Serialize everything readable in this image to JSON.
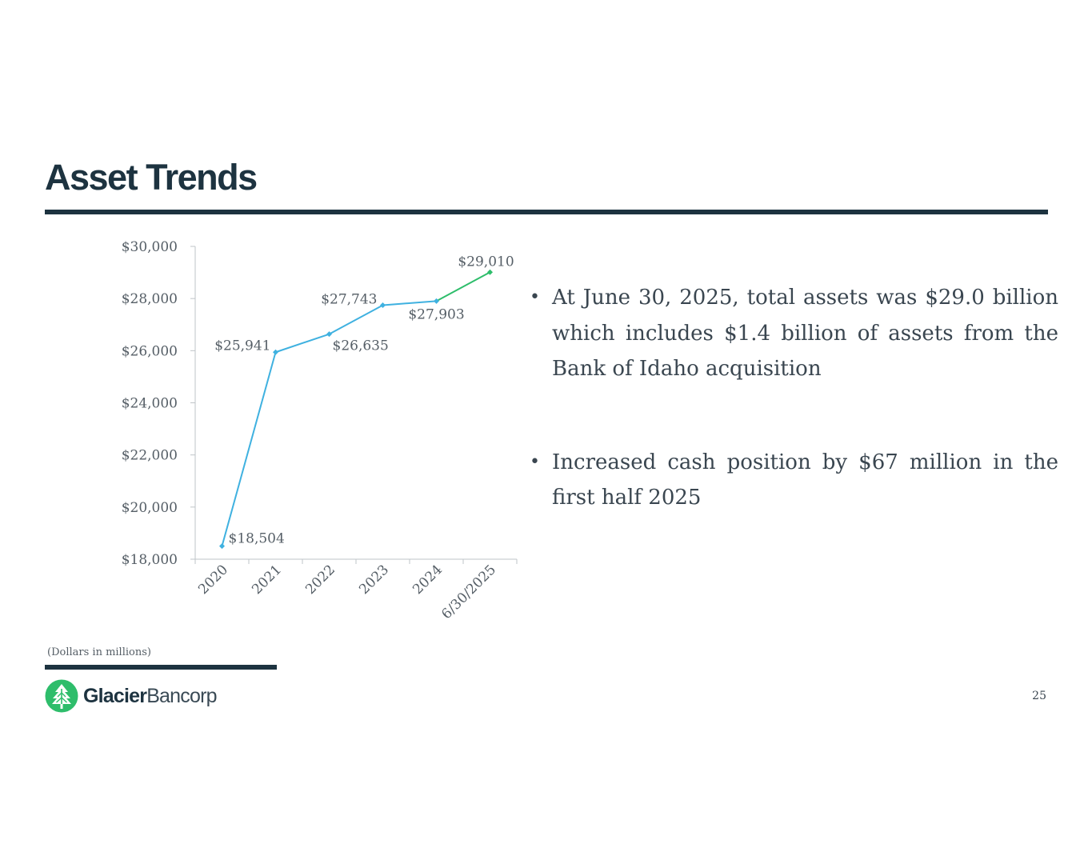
{
  "slide": {
    "title": "Asset Trends",
    "footnote": "(Dollars in millions)",
    "page_number": "25"
  },
  "logo": {
    "name_strong": "Glacier",
    "name_light": "Bancorp",
    "brand_color": "#2ebd6b"
  },
  "bullets": [
    "At June 30, 2025, total assets was $29.0 billion which includes $1.4 billion of assets from the Bank of Idaho acquisition",
    "Increased cash position by $67 million in the first half 2025"
  ],
  "colors": {
    "navy": "#1d3340",
    "line_blue": "#3fb1e0",
    "line_green": "#2ebd6b"
  },
  "chart_data": {
    "type": "line",
    "categories": [
      "2020",
      "2021",
      "2022",
      "2023",
      "2024",
      "6/30/2025"
    ],
    "values": [
      18504,
      25941,
      26635,
      27743,
      27903,
      29010
    ],
    "data_labels": [
      "$18,504",
      "$25,941",
      "$26,635",
      "$27,743",
      "$27,903",
      "$29,010"
    ],
    "ylim": [
      18000,
      30000
    ],
    "y_ticks": [
      18000,
      20000,
      22000,
      24000,
      26000,
      28000,
      30000
    ],
    "y_tick_labels": [
      "$18,000",
      "$20,000",
      "$22,000",
      "$24,000",
      "$26,000",
      "$28,000",
      "$30,000"
    ],
    "series_colors": [
      "#3fb1e0",
      "#3fb1e0",
      "#3fb1e0",
      "#3fb1e0",
      "#3fb1e0",
      "#2ebd6b"
    ],
    "title": "",
    "xlabel": "",
    "ylabel": "",
    "grid": false,
    "legend": "none"
  }
}
